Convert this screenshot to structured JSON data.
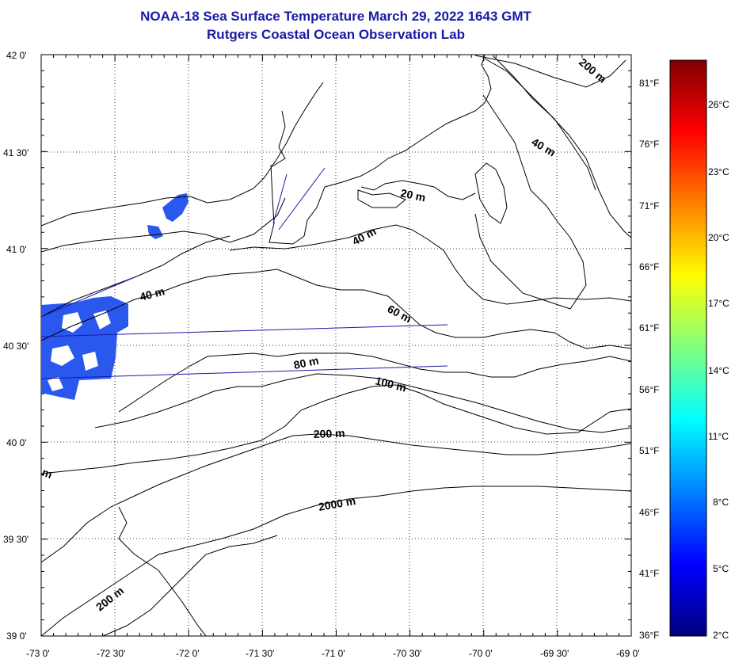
{
  "title": {
    "line1": "NOAA-18 Sea Surface Temperature March 29, 2022 1643 GMT",
    "line2": "Rutgers Coastal Ocean Observation Lab"
  },
  "map": {
    "lat_ticks": [
      "42 0'",
      "41 30'",
      "41 0'",
      "40 30'",
      "40 0'",
      "39 30'",
      "39 0'"
    ],
    "lon_ticks": [
      "-73 0'",
      "-72 30'",
      "-72 0'",
      "-71 30'",
      "-71 0'",
      "-70 30'",
      "-70 0'",
      "-69 30'",
      "-69 0'"
    ],
    "contour_labels": [
      {
        "id": "c200-ne",
        "text": "200 m"
      },
      {
        "id": "c40-ne",
        "text": "40 m"
      },
      {
        "id": "c20",
        "text": "20 m"
      },
      {
        "id": "c40-mid",
        "text": "40 m"
      },
      {
        "id": "c40-west",
        "text": "40 m"
      },
      {
        "id": "c60",
        "text": "60 m"
      },
      {
        "id": "c80",
        "text": "80 m"
      },
      {
        "id": "c100",
        "text": "100 m"
      },
      {
        "id": "c200-mid",
        "text": "200 m"
      },
      {
        "id": "c2000",
        "text": "2000 m"
      },
      {
        "id": "c200-sw",
        "text": "200 m"
      },
      {
        "id": "c-edge",
        "text": "m"
      }
    ],
    "colors": {
      "land_outline": "#000000",
      "tracks": "#1a1aa6",
      "sst_patch": "#2a58ef",
      "grid": "#000000"
    }
  },
  "colorbar": {
    "celsius": [
      "26°C",
      "23°C",
      "20°C",
      "17°C",
      "14°C",
      "11°C",
      "8°C",
      "5°C",
      "2°C"
    ],
    "fahrenheit": [
      "81°F",
      "76°F",
      "71°F",
      "66°F",
      "61°F",
      "56°F",
      "51°F",
      "46°F",
      "41°F",
      "36°F"
    ],
    "gradient": [
      "#000080",
      "#0000ff",
      "#0080ff",
      "#00ffff",
      "#80ff80",
      "#ffff00",
      "#ff8000",
      "#ff0000",
      "#800000"
    ]
  }
}
